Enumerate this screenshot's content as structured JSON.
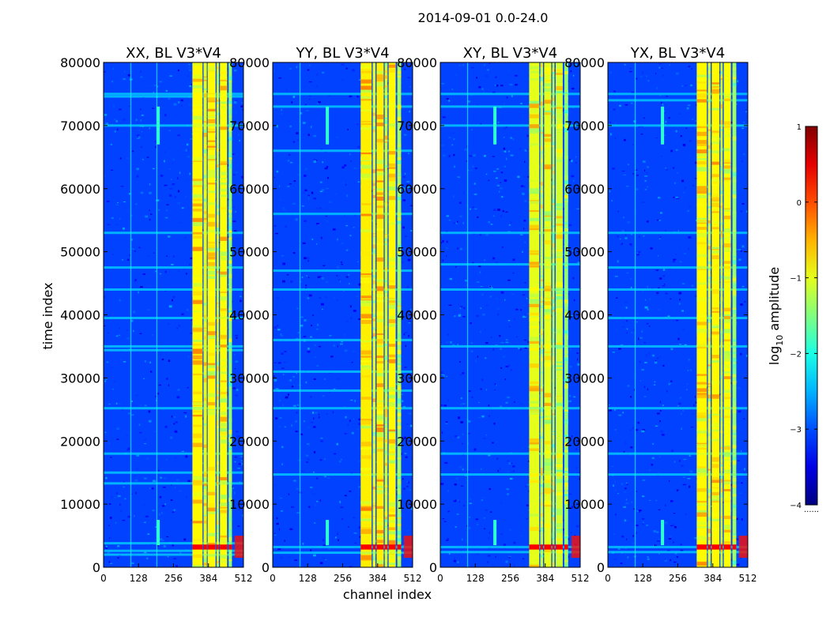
{
  "chart_data": {
    "type": "heatmap",
    "suptitle": "2014-09-01 0.0-24.0",
    "xlabel": "channel index",
    "ylabel": "time index",
    "xlim": [
      0,
      512
    ],
    "ylim": [
      0,
      80000
    ],
    "x_ticks": [
      "0",
      "128",
      "256",
      "384",
      "512"
    ],
    "y_ticks": [
      "0",
      "10000",
      "20000",
      "30000",
      "40000",
      "50000",
      "60000",
      "70000",
      "80000"
    ],
    "colormap": "jet",
    "panels": [
      {
        "title": "XX, BL V3*V4",
        "rfi_bars": [
          {
            "c0": 325,
            "c1": 362,
            "level": -0.85
          },
          {
            "c0": 366,
            "c1": 378,
            "level": -1.0
          },
          {
            "c0": 381,
            "c1": 410,
            "level": -0.85
          },
          {
            "c0": 414,
            "c1": 422,
            "level": -1.1
          },
          {
            "c0": 426,
            "c1": 452,
            "level": -0.9
          },
          {
            "c0": 458,
            "c1": 470,
            "level": -1.4
          }
        ],
        "horizontal_lines": [
          75000,
          74600,
          70000,
          53000,
          47500,
          44000,
          39500,
          35000,
          34400,
          25200,
          18000,
          15000,
          13300,
          3800,
          2600,
          2000
        ],
        "vertical_lines": [
          100,
          195
        ],
        "spots": [
          {
            "channel": 200,
            "t0": 67000,
            "t1": 73000
          },
          {
            "channel": 200,
            "t0": 3500,
            "t1": 7500
          }
        ]
      },
      {
        "title": "YY, BL V3*V4",
        "rfi_bars": [
          {
            "c0": 322,
            "c1": 362,
            "level": -0.8
          },
          {
            "c0": 366,
            "c1": 376,
            "level": -1.0
          },
          {
            "c0": 380,
            "c1": 406,
            "level": -0.8
          },
          {
            "c0": 410,
            "c1": 420,
            "level": -1.1
          },
          {
            "c0": 424,
            "c1": 450,
            "level": -0.85
          },
          {
            "c0": 456,
            "c1": 470,
            "level": -1.3
          }
        ],
        "horizontal_lines": [
          75000,
          73000,
          66000,
          56000,
          47000,
          44000,
          36000,
          31000,
          28000,
          25200,
          14700,
          3200,
          2300
        ],
        "vertical_lines": [
          100
        ],
        "spots": [
          {
            "channel": 200,
            "t0": 67000,
            "t1": 73000
          },
          {
            "channel": 200,
            "t0": 3500,
            "t1": 7500
          }
        ]
      },
      {
        "title": "XY, BL V3*V4",
        "rfi_bars": [
          {
            "c0": 325,
            "c1": 362,
            "level": -1.0
          },
          {
            "c0": 366,
            "c1": 376,
            "level": -1.15
          },
          {
            "c0": 380,
            "c1": 406,
            "level": -1.0
          },
          {
            "c0": 410,
            "c1": 418,
            "level": -1.2
          },
          {
            "c0": 422,
            "c1": 448,
            "level": -1.1
          },
          {
            "c0": 454,
            "c1": 468,
            "level": -1.4
          }
        ],
        "horizontal_lines": [
          75000,
          73000,
          70000,
          53000,
          48000,
          44000,
          35000,
          25200,
          18000,
          14700,
          3200,
          2400
        ],
        "vertical_lines": [
          100
        ],
        "spots": [
          {
            "channel": 200,
            "t0": 67000,
            "t1": 73000
          },
          {
            "channel": 200,
            "t0": 3500,
            "t1": 7500
          }
        ]
      },
      {
        "title": "YX, BL V3*V4",
        "rfi_bars": [
          {
            "c0": 325,
            "c1": 362,
            "level": -0.85
          },
          {
            "c0": 366,
            "c1": 376,
            "level": -1.0
          },
          {
            "c0": 380,
            "c1": 408,
            "level": -0.85
          },
          {
            "c0": 412,
            "c1": 420,
            "level": -1.1
          },
          {
            "c0": 424,
            "c1": 450,
            "level": -0.9
          },
          {
            "c0": 456,
            "c1": 470,
            "level": -1.35
          }
        ],
        "horizontal_lines": [
          75000,
          74000,
          70000,
          53000,
          47500,
          44000,
          39500,
          35000,
          25200,
          18000,
          14700,
          3200,
          2400
        ],
        "vertical_lines": [
          100
        ],
        "spots": [
          {
            "channel": 200,
            "t0": 67000,
            "t1": 73000
          },
          {
            "channel": 200,
            "t0": 3500,
            "t1": 7500
          }
        ]
      }
    ],
    "colorbar": {
      "label_main": "log",
      "label_sub": "10",
      "label_rest": " amplitude",
      "vmin": -4,
      "vmax": 1,
      "ticks": [
        "−4",
        "−3",
        "−2",
        "−1",
        "0",
        "1"
      ],
      "below_marker": "......"
    },
    "background_level": -3.05
  }
}
